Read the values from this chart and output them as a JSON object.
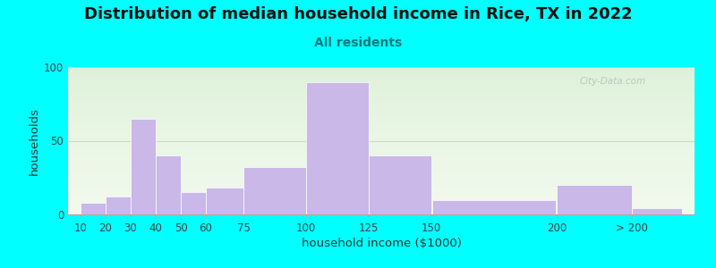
{
  "title": "Distribution of median household income in Rice, TX in 2022",
  "subtitle": "All residents",
  "xlabel": "household income ($1000)",
  "ylabel": "households",
  "bar_color": "#c9b8e8",
  "bar_edgecolor": "#ffffff",
  "background_outer": "#00ffff",
  "background_inner": "#f0f9ec",
  "categories": [
    "10",
    "20",
    "30",
    "40",
    "50",
    "60",
    "75",
    "100",
    "125",
    "150",
    "200",
    "> 200"
  ],
  "values": [
    8,
    12,
    65,
    40,
    15,
    18,
    32,
    90,
    40,
    10,
    20,
    4
  ],
  "bar_lefts": [
    10,
    20,
    30,
    40,
    50,
    60,
    75,
    100,
    125,
    150,
    200,
    230
  ],
  "bar_rights": [
    20,
    30,
    40,
    50,
    60,
    75,
    100,
    125,
    150,
    200,
    230,
    250
  ],
  "tick_positions": [
    10,
    20,
    30,
    40,
    50,
    60,
    75,
    100,
    125,
    150,
    200,
    230
  ],
  "ylim": [
    0,
    100
  ],
  "yticks": [
    0,
    50,
    100
  ],
  "xlim": [
    5,
    255
  ],
  "title_fontsize": 13,
  "subtitle_fontsize": 10,
  "axis_label_fontsize": 9.5,
  "tick_fontsize": 8.5,
  "watermark_text": "City-Data.com",
  "grid_color": "#c8dcc8",
  "title_color": "#111111",
  "subtitle_color": "#007a7a"
}
